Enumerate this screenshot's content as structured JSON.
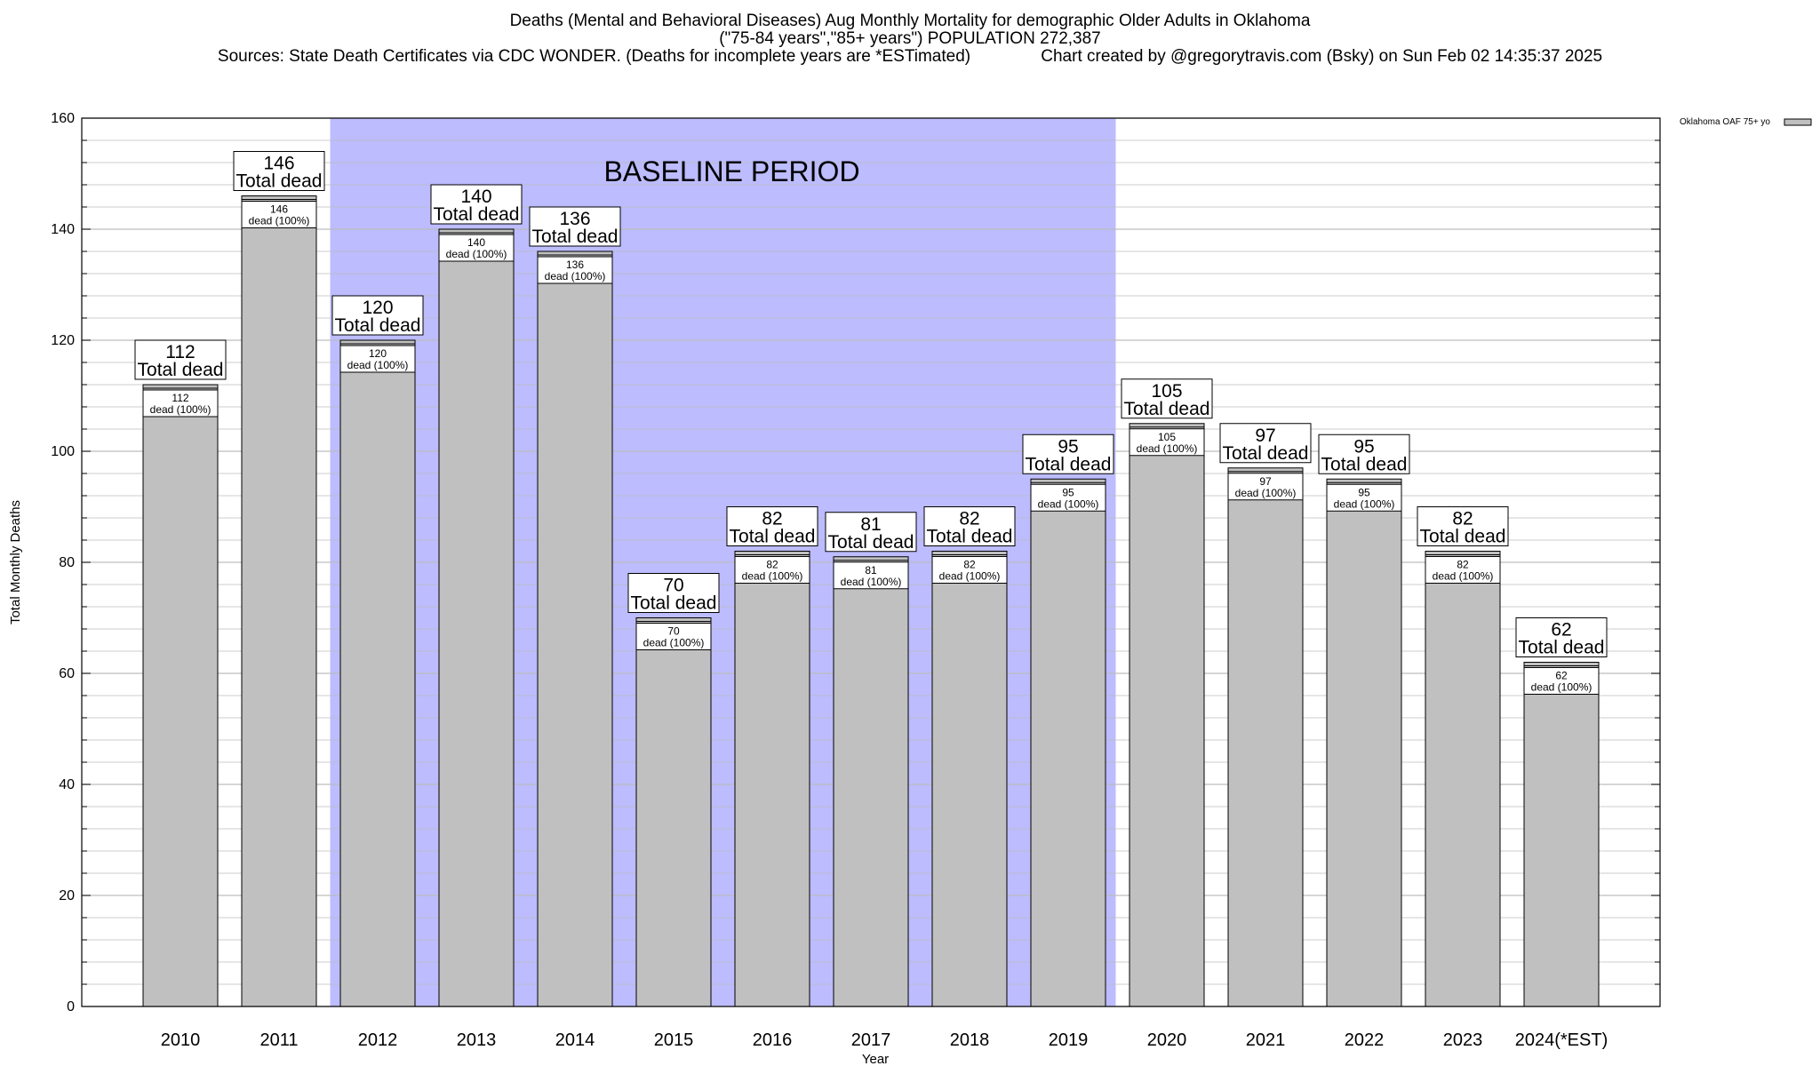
{
  "chart_data": {
    "type": "bar",
    "title_lines": [
      "Deaths (Mental and Behavioral Diseases) Aug Monthly Mortality for demographic Older Adults in Oklahoma",
      "(\"75-84 years\",\"85+ years\") POPULATION 272,387",
      "Sources: State Death Certificates via CDC WONDER. (Deaths for incomplete years are *ESTimated)               Chart created by @gregorytravis.com (Bsky) on Sun Feb 02 14:35:37 2025"
    ],
    "xlabel": "Year",
    "ylabel": "Total Monthly Deaths",
    "ylim": [
      0,
      160
    ],
    "yticks": [
      0,
      20,
      40,
      60,
      80,
      100,
      120,
      140,
      160
    ],
    "grid": true,
    "legend": {
      "position": "top-right",
      "entries": [
        "Oklahoma OAF 75+ yo"
      ]
    },
    "categories": [
      "2010",
      "2011",
      "2012",
      "2013",
      "2014",
      "2015",
      "2016",
      "2017",
      "2018",
      "2019",
      "2020",
      "2021",
      "2022",
      "2023",
      "2024(*EST)"
    ],
    "series": [
      {
        "name": "Oklahoma OAF 75+ yo",
        "values": [
          112,
          146,
          120,
          140,
          136,
          70,
          82,
          81,
          82,
          95,
          105,
          97,
          95,
          82,
          62
        ]
      }
    ],
    "total_label_suffix": "Total dead",
    "inner_label_suffix": "dead (100%)",
    "baseline_period": {
      "label": "BASELINE PERIOD",
      "from": "2012",
      "to": "2019"
    },
    "colors": {
      "bar": "#c0c0c0",
      "baseline_shade": "#bcbcff",
      "grid": "#bdbdbd"
    }
  }
}
